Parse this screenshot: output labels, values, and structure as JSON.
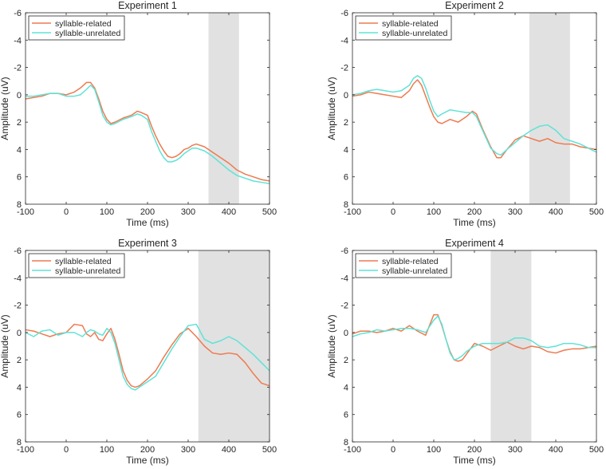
{
  "colors": {
    "related": "#ee7a50",
    "unrelated": "#5ee3d6",
    "shade": "#e1e1e1",
    "axis": "#262626"
  },
  "chart_data": [
    {
      "type": "line",
      "title": "Experiment 1",
      "xlabel": "Time (ms)",
      "ylabel": "Amplitude (uV)",
      "xlim": [
        -100,
        500
      ],
      "ylim": [
        -6,
        8
      ],
      "y_reversed": true,
      "xticks": [
        -100,
        0,
        100,
        200,
        300,
        400,
        500
      ],
      "yticks": [
        -6,
        -4,
        -2,
        0,
        2,
        4,
        6,
        8
      ],
      "shaded_window": [
        350,
        425
      ],
      "legend": "top-left",
      "series": [
        {
          "name": "syllable-related",
          "color_key": "related",
          "x": [
            -100,
            -80,
            -60,
            -40,
            -20,
            0,
            20,
            35,
            50,
            60,
            70,
            80,
            90,
            100,
            110,
            120,
            140,
            160,
            175,
            185,
            200,
            210,
            220,
            230,
            240,
            250,
            260,
            270,
            280,
            290,
            300,
            310,
            320,
            340,
            360,
            380,
            400,
            420,
            440,
            460,
            480,
            500
          ],
          "y": [
            0.3,
            0.2,
            0.1,
            -0.1,
            -0.1,
            0.0,
            -0.2,
            -0.5,
            -0.9,
            -0.9,
            -0.5,
            0.3,
            1.2,
            1.8,
            2.1,
            2.0,
            1.7,
            1.5,
            1.2,
            1.3,
            1.5,
            2.3,
            3.0,
            3.6,
            4.1,
            4.5,
            4.6,
            4.5,
            4.3,
            4.0,
            3.9,
            3.7,
            3.6,
            3.8,
            4.2,
            4.6,
            5.0,
            5.5,
            5.8,
            6.0,
            6.2,
            6.3
          ]
        },
        {
          "name": "syllable-unrelated",
          "color_key": "unrelated",
          "x": [
            -100,
            -80,
            -60,
            -40,
            -20,
            0,
            20,
            35,
            50,
            60,
            70,
            80,
            90,
            100,
            110,
            120,
            140,
            160,
            175,
            185,
            200,
            210,
            220,
            230,
            240,
            250,
            260,
            270,
            280,
            290,
            300,
            310,
            320,
            340,
            360,
            380,
            400,
            420,
            440,
            460,
            480,
            500
          ],
          "y": [
            0.1,
            0.1,
            0.0,
            -0.1,
            -0.1,
            0.1,
            0.1,
            0.0,
            -0.4,
            -0.7,
            -0.4,
            0.5,
            1.5,
            2.0,
            2.2,
            2.1,
            1.8,
            1.6,
            1.4,
            1.5,
            1.8,
            2.7,
            3.4,
            4.1,
            4.6,
            4.9,
            4.9,
            4.8,
            4.6,
            4.3,
            4.1,
            3.9,
            3.9,
            4.1,
            4.5,
            5.0,
            5.5,
            5.9,
            6.1,
            6.3,
            6.4,
            6.5
          ]
        }
      ]
    },
    {
      "type": "line",
      "title": "Experiment 2",
      "xlabel": "Time (ms)",
      "ylabel": "Amplitude (uV)",
      "xlim": [
        -100,
        500
      ],
      "ylim": [
        -6,
        8
      ],
      "y_reversed": true,
      "xticks": [
        -100,
        0,
        100,
        200,
        300,
        400,
        500
      ],
      "yticks": [
        -6,
        -4,
        -2,
        0,
        2,
        4,
        6,
        8
      ],
      "shaded_window": [
        335,
        435
      ],
      "legend": "top-left",
      "series": [
        {
          "name": "syllable-related",
          "color_key": "related",
          "x": [
            -100,
            -80,
            -60,
            -40,
            -20,
            0,
            20,
            40,
            50,
            60,
            70,
            80,
            90,
            100,
            110,
            120,
            140,
            160,
            180,
            195,
            205,
            220,
            240,
            255,
            265,
            280,
            300,
            320,
            340,
            360,
            380,
            400,
            420,
            440,
            460,
            480,
            500
          ],
          "y": [
            0.1,
            0.0,
            -0.2,
            -0.1,
            0.0,
            0.1,
            0.2,
            -0.3,
            -0.8,
            -1.1,
            -0.7,
            0.1,
            0.9,
            1.6,
            2.0,
            2.1,
            1.8,
            2.0,
            1.6,
            1.2,
            1.4,
            2.5,
            3.8,
            4.6,
            4.6,
            4.0,
            3.3,
            3.0,
            3.2,
            3.4,
            3.2,
            3.5,
            3.6,
            3.6,
            3.8,
            3.9,
            4.0
          ]
        },
        {
          "name": "syllable-unrelated",
          "color_key": "unrelated",
          "x": [
            -100,
            -80,
            -60,
            -40,
            -20,
            0,
            20,
            40,
            50,
            60,
            70,
            80,
            90,
            100,
            110,
            120,
            140,
            160,
            180,
            195,
            205,
            220,
            240,
            255,
            265,
            280,
            300,
            320,
            340,
            360,
            380,
            400,
            420,
            440,
            460,
            480,
            500
          ],
          "y": [
            0.0,
            -0.1,
            -0.3,
            -0.4,
            -0.3,
            -0.2,
            -0.3,
            -0.7,
            -1.2,
            -1.4,
            -1.2,
            -0.5,
            0.4,
            1.2,
            1.6,
            1.4,
            1.1,
            1.2,
            1.3,
            1.3,
            1.6,
            2.6,
            3.9,
            4.3,
            4.4,
            4.0,
            3.5,
            3.0,
            2.6,
            2.3,
            2.2,
            2.6,
            3.2,
            3.4,
            3.6,
            3.9,
            4.2
          ]
        }
      ]
    },
    {
      "type": "line",
      "title": "Experiment 3",
      "xlabel": "Time (ms)",
      "ylabel": "Amplitude (uV)",
      "xlim": [
        -100,
        500
      ],
      "ylim": [
        -6,
        8
      ],
      "y_reversed": true,
      "xticks": [
        -100,
        0,
        100,
        200,
        300,
        400,
        500
      ],
      "yticks": [
        -6,
        -4,
        -2,
        0,
        2,
        4,
        6,
        8
      ],
      "shaded_window": [
        325,
        500
      ],
      "legend": "top-left",
      "series": [
        {
          "name": "syllable-related",
          "color_key": "related",
          "x": [
            -100,
            -80,
            -60,
            -40,
            -20,
            0,
            20,
            40,
            50,
            60,
            70,
            80,
            90,
            100,
            110,
            120,
            130,
            140,
            150,
            160,
            170,
            180,
            200,
            220,
            240,
            260,
            280,
            300,
            320,
            340,
            360,
            380,
            400,
            420,
            440,
            460,
            480,
            500
          ],
          "y": [
            -0.2,
            -0.1,
            0.1,
            0.3,
            0.1,
            0.0,
            -0.6,
            -0.5,
            0.1,
            0.3,
            0.0,
            0.5,
            0.6,
            0.1,
            -0.3,
            0.5,
            1.6,
            2.8,
            3.5,
            3.9,
            4.0,
            3.9,
            3.4,
            2.8,
            1.8,
            0.9,
            0.1,
            -0.3,
            0.3,
            1.0,
            1.5,
            1.6,
            1.5,
            1.6,
            2.2,
            3.0,
            3.7,
            3.9
          ]
        },
        {
          "name": "syllable-unrelated",
          "color_key": "unrelated",
          "x": [
            -100,
            -80,
            -60,
            -40,
            -20,
            0,
            20,
            40,
            50,
            60,
            70,
            80,
            90,
            100,
            110,
            120,
            130,
            140,
            150,
            160,
            170,
            180,
            200,
            220,
            240,
            260,
            280,
            300,
            320,
            340,
            360,
            380,
            400,
            420,
            440,
            460,
            480,
            500
          ],
          "y": [
            0.0,
            0.3,
            -0.1,
            -0.2,
            0.2,
            0.0,
            0.0,
            0.3,
            0.0,
            -0.2,
            -0.1,
            0.1,
            0.2,
            -0.3,
            0.0,
            0.8,
            2.0,
            3.2,
            3.8,
            4.1,
            4.2,
            4.0,
            3.6,
            3.2,
            2.2,
            1.2,
            0.3,
            -0.5,
            -0.6,
            0.5,
            0.8,
            0.6,
            0.3,
            0.6,
            1.1,
            1.6,
            2.2,
            2.8
          ]
        }
      ]
    },
    {
      "type": "line",
      "title": "Experiment 4",
      "xlabel": "Time (ms)",
      "ylabel": "Amplitude (uV)",
      "xlim": [
        -100,
        500
      ],
      "ylim": [
        -6,
        8
      ],
      "y_reversed": true,
      "xticks": [
        -100,
        0,
        100,
        200,
        300,
        400,
        500
      ],
      "yticks": [
        -6,
        -4,
        -2,
        0,
        2,
        4,
        6,
        8
      ],
      "shaded_window": [
        240,
        340
      ],
      "legend": "top-left",
      "series": [
        {
          "name": "syllable-related",
          "color_key": "related",
          "x": [
            -100,
            -80,
            -60,
            -40,
            -20,
            0,
            20,
            40,
            60,
            80,
            100,
            110,
            120,
            130,
            140,
            150,
            160,
            170,
            180,
            200,
            220,
            240,
            260,
            280,
            300,
            320,
            340,
            360,
            380,
            400,
            420,
            440,
            460,
            480,
            500
          ],
          "y": [
            0.1,
            -0.1,
            -0.1,
            0.0,
            -0.1,
            -0.3,
            -0.1,
            -0.5,
            -0.1,
            0.2,
            -1.3,
            -1.3,
            -0.5,
            0.5,
            1.4,
            2.0,
            2.1,
            2.0,
            1.6,
            0.8,
            1.0,
            1.3,
            1.0,
            0.7,
            1.0,
            1.2,
            1.0,
            1.1,
            1.4,
            1.5,
            1.3,
            1.2,
            1.2,
            1.1,
            1.0
          ]
        },
        {
          "name": "syllable-unrelated",
          "color_key": "unrelated",
          "x": [
            -100,
            -80,
            -60,
            -40,
            -20,
            0,
            20,
            40,
            60,
            80,
            100,
            110,
            120,
            130,
            140,
            150,
            160,
            170,
            180,
            200,
            220,
            240,
            260,
            280,
            300,
            320,
            340,
            360,
            380,
            400,
            420,
            440,
            460,
            480,
            500
          ],
          "y": [
            0.3,
            0.1,
            0.0,
            -0.2,
            -0.1,
            -0.2,
            -0.3,
            -0.3,
            -0.2,
            0.0,
            -0.9,
            -1.2,
            -0.6,
            0.5,
            1.5,
            2.0,
            1.9,
            1.7,
            1.4,
            1.0,
            0.8,
            0.8,
            0.8,
            0.7,
            0.4,
            0.4,
            0.6,
            1.0,
            1.1,
            1.0,
            0.8,
            0.8,
            0.9,
            1.1,
            1.1
          ]
        }
      ]
    }
  ]
}
